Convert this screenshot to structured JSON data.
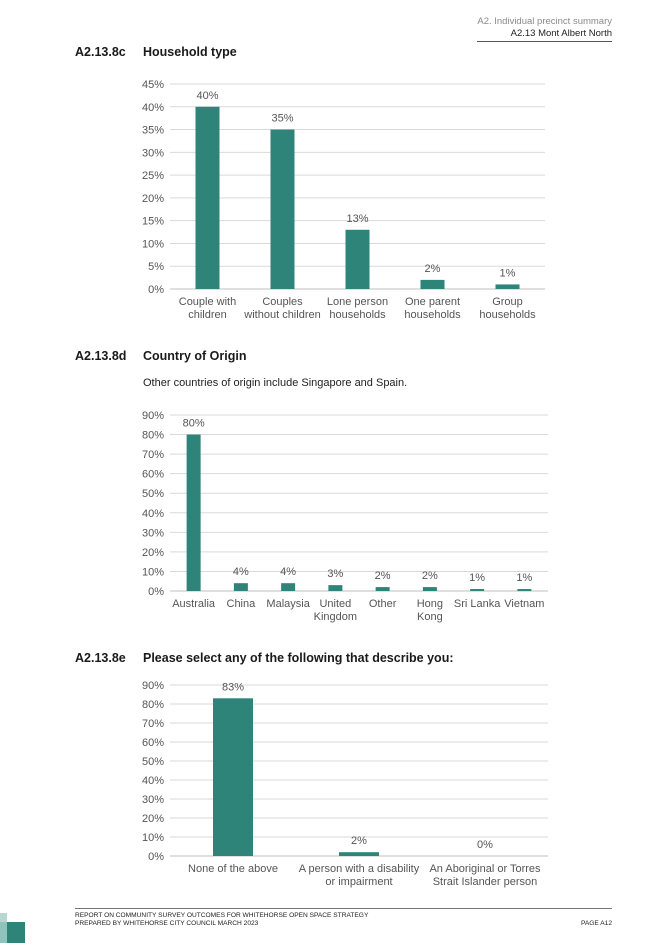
{
  "header": {
    "line1": "A2. Individual precinct summary",
    "line2": "A2.13 Mont Albert North"
  },
  "sections": {
    "household": {
      "number": "A2.13.8c",
      "title": "Household type"
    },
    "origin": {
      "number": "A2.13.8d",
      "title": "Country of Origin",
      "note": "Other countries of origin include Singapore and Spain."
    },
    "describe": {
      "number": "A2.13.8e",
      "title": "Please select any of the following that describe you:"
    }
  },
  "colors": {
    "bar": "#2e8478",
    "grid": "#d9d9d9",
    "axis_text": "#555555"
  },
  "chart_data": [
    {
      "type": "bar",
      "categories": [
        [
          "Couple with",
          "children"
        ],
        [
          "Couples",
          "without children"
        ],
        [
          "Lone person",
          "households"
        ],
        [
          "One parent",
          "households"
        ],
        [
          "Group",
          "households"
        ]
      ],
      "values": [
        40,
        35,
        13,
        2,
        1
      ],
      "data_labels": [
        "40%",
        "35%",
        "13%",
        "2%",
        "1%"
      ],
      "ylim": [
        0,
        45
      ],
      "yticks": [
        "0%",
        "5%",
        "10%",
        "15%",
        "20%",
        "25%",
        "30%",
        "35%",
        "40%",
        "45%"
      ],
      "grid": true
    },
    {
      "type": "bar",
      "categories": [
        [
          "Australia"
        ],
        [
          "China"
        ],
        [
          "Malaysia"
        ],
        [
          "United",
          "Kingdom"
        ],
        [
          "Other"
        ],
        [
          "Hong",
          "Kong"
        ],
        [
          "Sri Lanka"
        ],
        [
          "Vietnam"
        ]
      ],
      "values": [
        80,
        4,
        4,
        3,
        2,
        2,
        1,
        1
      ],
      "data_labels": [
        "80%",
        "4%",
        "4%",
        "3%",
        "2%",
        "2%",
        "1%",
        "1%"
      ],
      "ylim": [
        0,
        90
      ],
      "yticks": [
        "0%",
        "10%",
        "20%",
        "30%",
        "40%",
        "50%",
        "60%",
        "70%",
        "80%",
        "90%"
      ],
      "grid": true
    },
    {
      "type": "bar",
      "categories": [
        [
          "None of the above"
        ],
        [
          "A person with a disability",
          "or impairment"
        ],
        [
          "An Aboriginal or Torres",
          "Strait Islander person"
        ]
      ],
      "values": [
        83,
        2,
        0
      ],
      "data_labels": [
        "83%",
        "2%",
        "0%"
      ],
      "ylim": [
        0,
        90
      ],
      "yticks": [
        "0%",
        "10%",
        "20%",
        "30%",
        "40%",
        "50%",
        "60%",
        "70%",
        "80%",
        "90%"
      ],
      "grid": true
    }
  ],
  "footer": {
    "line1": "REPORT ON COMMUNITY SURVEY OUTCOMES FOR WHITEHORSE OPEN SPACE STRATEGY",
    "line2": "PREPARED BY WHITEHORSE CITY COUNCIL MARCH 2023",
    "page": "PAGE A12"
  }
}
